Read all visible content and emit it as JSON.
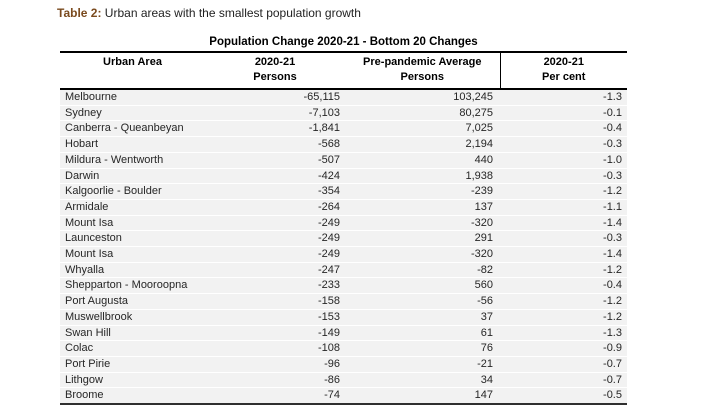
{
  "title": {
    "prefix": "Table 2:",
    "text": " Urban areas with the smallest population growth",
    "prefix_color": "#7a4a1e"
  },
  "table": {
    "caption": "Population Change 2020-21 - Bottom 20 Changes",
    "columns": {
      "urban_area": {
        "line1": "Urban Area",
        "line2": ""
      },
      "persons": {
        "line1": "2020-21",
        "line2": "Persons"
      },
      "pre_pandemic": {
        "line1": "Pre-pandemic Average",
        "line2": "Persons"
      },
      "per_cent": {
        "line1": "2020-21",
        "line2": "Per cent"
      }
    },
    "colors": {
      "row_background": "#f2f2f2",
      "border": "#000000",
      "text": "#262626"
    },
    "rows": [
      {
        "urban_area": "Melbourne",
        "persons": "-65,115",
        "pre_pandemic": "103,245",
        "per_cent": "-1.3"
      },
      {
        "urban_area": "Sydney",
        "persons": "-7,103",
        "pre_pandemic": "80,275",
        "per_cent": "-0.1"
      },
      {
        "urban_area": "Canberra - Queanbeyan",
        "persons": "-1,841",
        "pre_pandemic": "7,025",
        "per_cent": "-0.4"
      },
      {
        "urban_area": "Hobart",
        "persons": "-568",
        "pre_pandemic": "2,194",
        "per_cent": "-0.3"
      },
      {
        "urban_area": "Mildura - Wentworth",
        "persons": "-507",
        "pre_pandemic": "440",
        "per_cent": "-1.0"
      },
      {
        "urban_area": "Darwin",
        "persons": "-424",
        "pre_pandemic": "1,938",
        "per_cent": "-0.3"
      },
      {
        "urban_area": "Kalgoorlie - Boulder",
        "persons": "-354",
        "pre_pandemic": "-239",
        "per_cent": "-1.2"
      },
      {
        "urban_area": "Armidale",
        "persons": "-264",
        "pre_pandemic": "137",
        "per_cent": "-1.1"
      },
      {
        "urban_area": "Mount Isa",
        "persons": "-249",
        "pre_pandemic": "-320",
        "per_cent": "-1.4"
      },
      {
        "urban_area": "Launceston",
        "persons": "-249",
        "pre_pandemic": "291",
        "per_cent": "-0.3"
      },
      {
        "urban_area": "Mount Isa",
        "persons": "-249",
        "pre_pandemic": "-320",
        "per_cent": "-1.4"
      },
      {
        "urban_area": "Whyalla",
        "persons": "-247",
        "pre_pandemic": "-82",
        "per_cent": "-1.2"
      },
      {
        "urban_area": "Shepparton - Mooroopna",
        "persons": "-233",
        "pre_pandemic": "560",
        "per_cent": "-0.4"
      },
      {
        "urban_area": "Port Augusta",
        "persons": "-158",
        "pre_pandemic": "-56",
        "per_cent": "-1.2"
      },
      {
        "urban_area": "Muswellbrook",
        "persons": "-153",
        "pre_pandemic": "37",
        "per_cent": "-1.2"
      },
      {
        "urban_area": "Swan Hill",
        "persons": "-149",
        "pre_pandemic": "61",
        "per_cent": "-1.3"
      },
      {
        "urban_area": "Colac",
        "persons": "-108",
        "pre_pandemic": "76",
        "per_cent": "-0.9"
      },
      {
        "urban_area": "Port Pirie",
        "persons": "-96",
        "pre_pandemic": "-21",
        "per_cent": "-0.7"
      },
      {
        "urban_area": "Lithgow",
        "persons": "-86",
        "pre_pandemic": "34",
        "per_cent": "-0.7"
      },
      {
        "urban_area": "Broome",
        "persons": "-74",
        "pre_pandemic": "147",
        "per_cent": "-0.5"
      }
    ]
  }
}
